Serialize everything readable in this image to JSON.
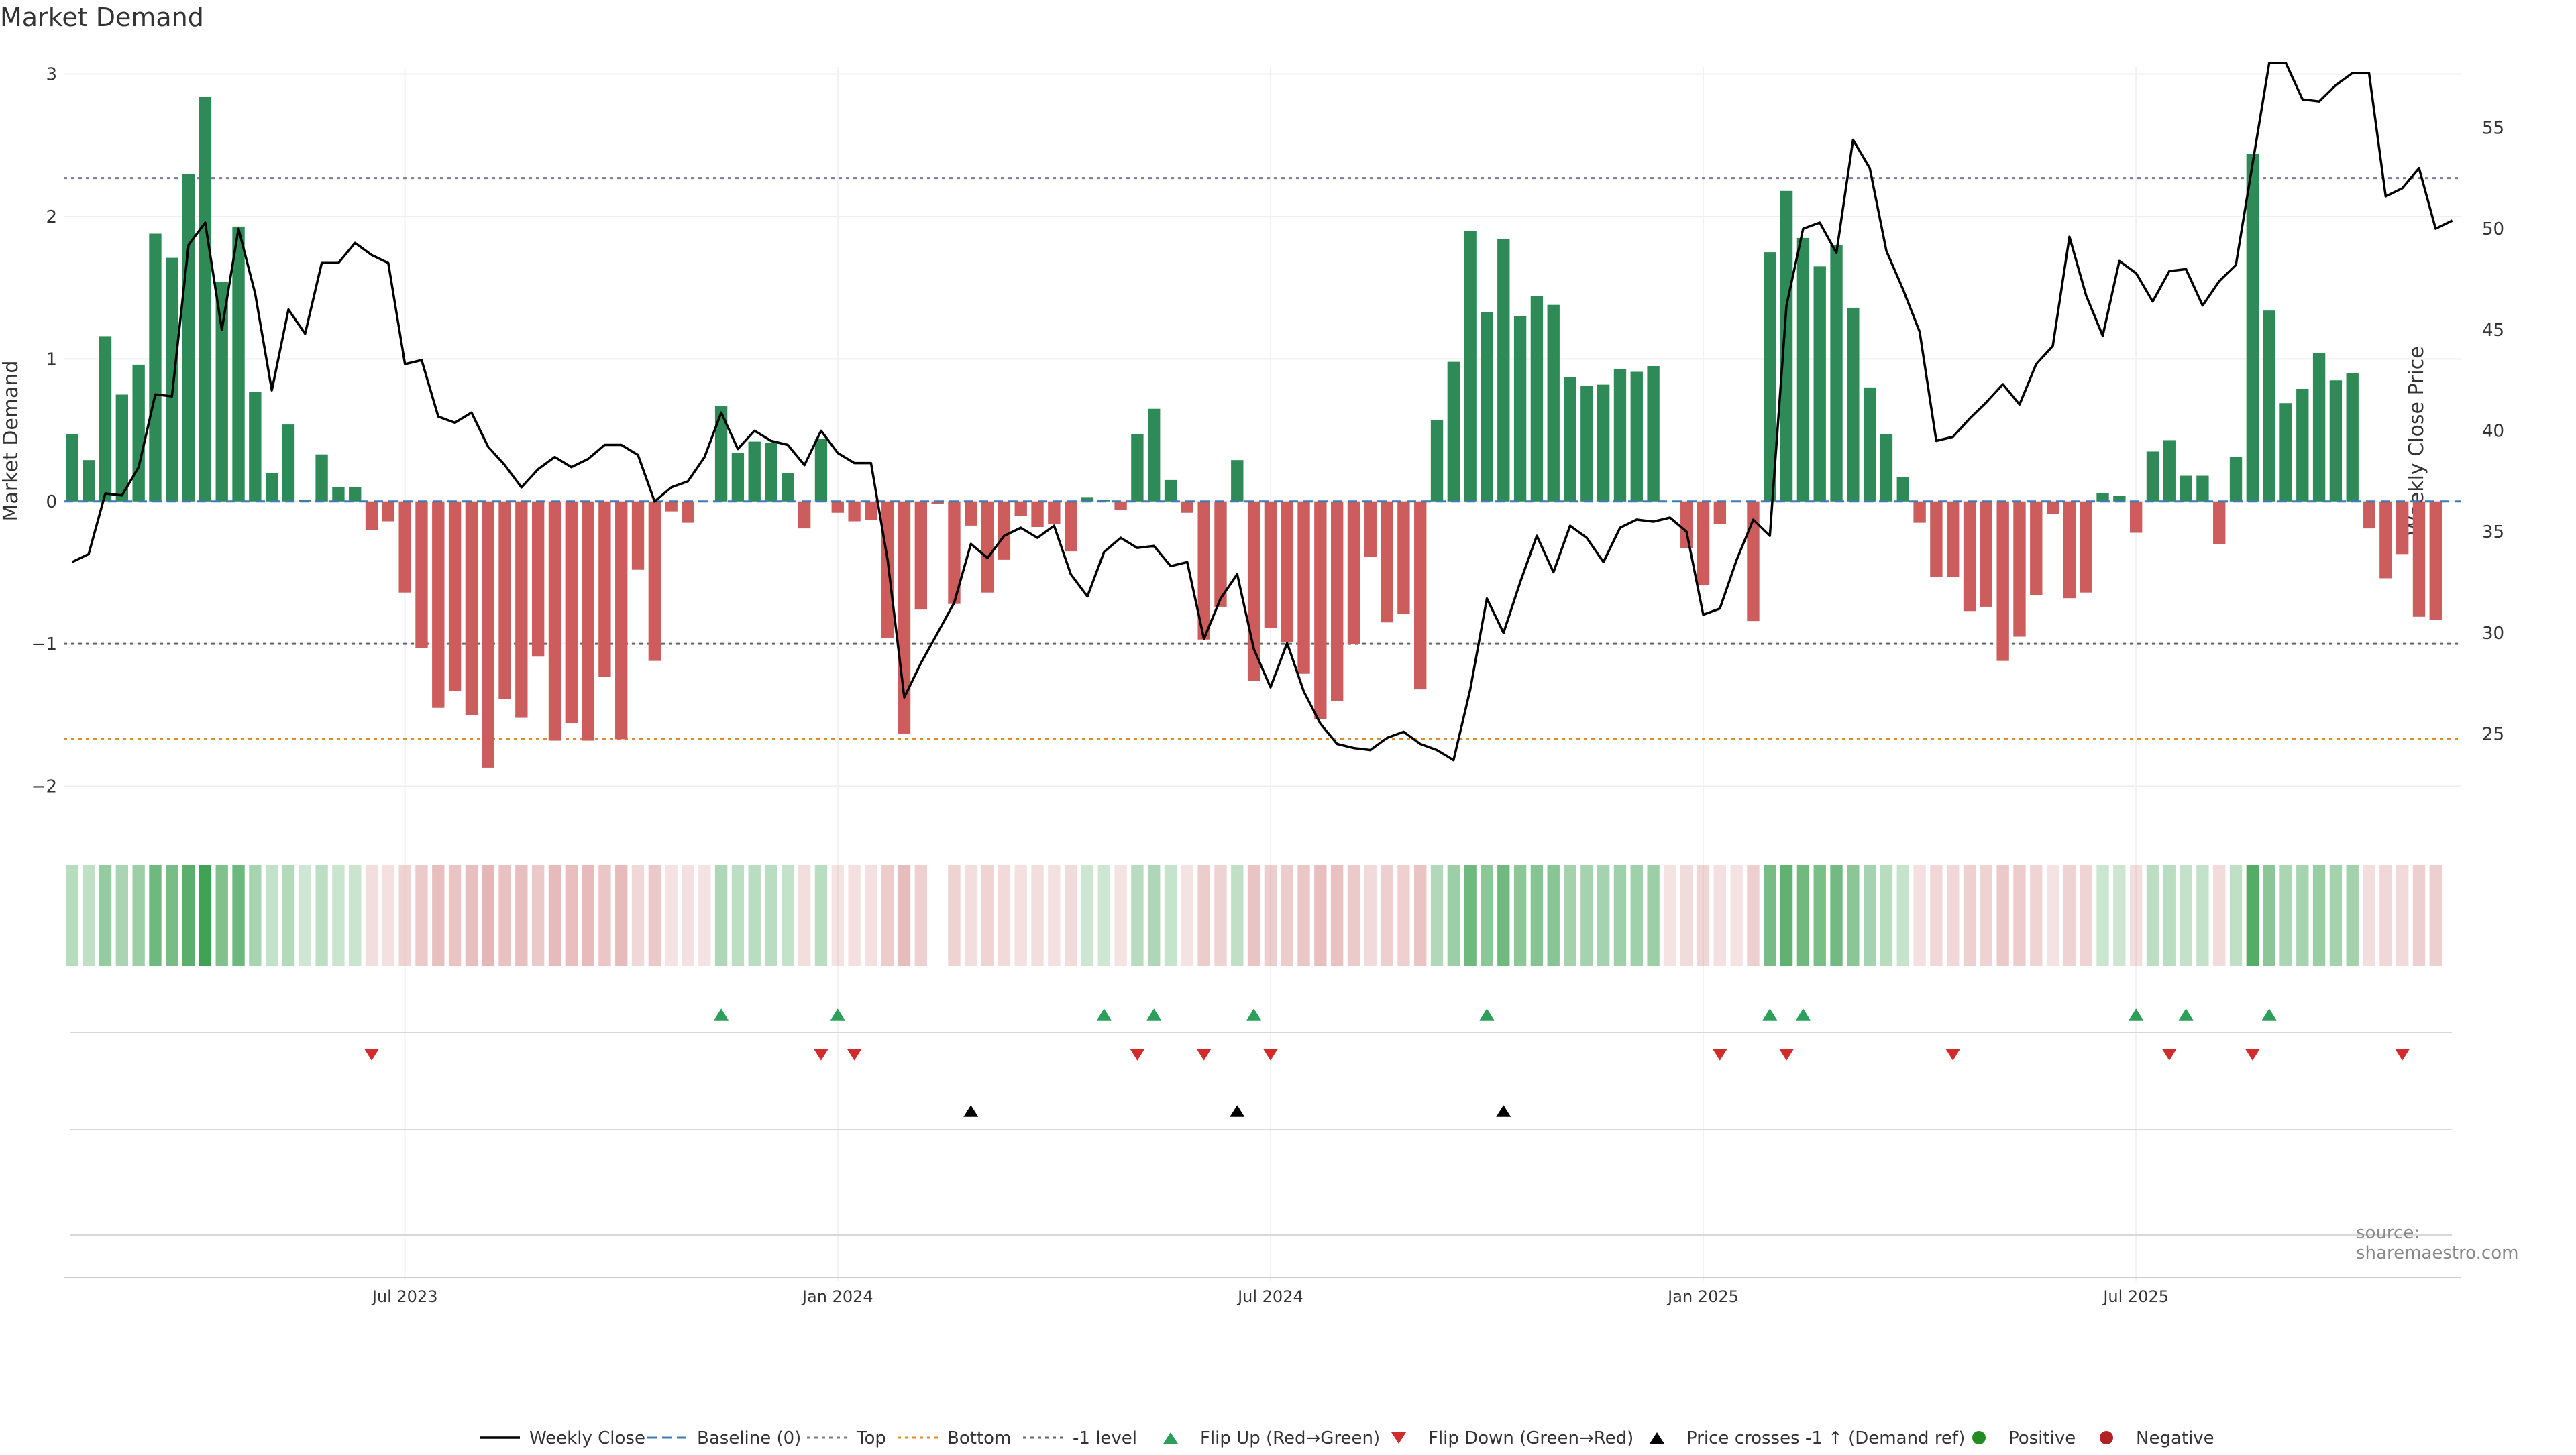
{
  "chart_data": {
    "type": "bar",
    "title": "Market Demand",
    "ylabel": "Market Demand",
    "y2label": "Weekly Close Price",
    "source": "source: sharemaestro.com",
    "ylim": [
      -2.2,
      3.05
    ],
    "y2lim": [
      21,
      58
    ],
    "yticks": [
      3,
      2,
      1,
      0,
      -1,
      -2
    ],
    "ytick_labels": [
      "3",
      "2",
      "1",
      "0",
      "−1",
      "−2"
    ],
    "y2ticks": [
      25,
      30,
      35,
      40,
      45,
      50,
      55
    ],
    "levels": {
      "top": 2.27,
      "bottom": -1.67,
      "minus_one": -1.0,
      "baseline": 0
    },
    "x_ticks": [
      {
        "label": "Jul 2023",
        "index": 20
      },
      {
        "label": "Jan 2024",
        "index": 46
      },
      {
        "label": "Jul 2024",
        "index": 72
      },
      {
        "label": "Jan 2025",
        "index": 98
      },
      {
        "label": "Jul 2025",
        "index": 124
      }
    ],
    "weeks": 144,
    "demand": [
      0.47,
      0.29,
      1.16,
      0.75,
      0.96,
      1.88,
      1.71,
      2.3,
      2.84,
      1.54,
      1.93,
      0.77,
      0.2,
      0.54,
      0.01,
      0.33,
      0.1,
      0.1,
      -0.2,
      -0.14,
      -0.64,
      -1.03,
      -1.45,
      -1.33,
      -1.5,
      -1.87,
      -1.39,
      -1.52,
      -1.09,
      -1.68,
      -1.56,
      -1.68,
      -1.23,
      -1.67,
      -0.48,
      -1.12,
      -0.07,
      -0.15,
      0.0,
      0.67,
      0.34,
      0.42,
      0.41,
      0.2,
      -0.19,
      0.44,
      -0.08,
      -0.14,
      -0.13,
      -0.96,
      -1.63,
      -0.76,
      -0.02,
      -0.72,
      -0.17,
      -0.64,
      -0.41,
      -0.1,
      -0.18,
      -0.16,
      -0.35,
      0.03,
      0.01,
      -0.06,
      0.47,
      0.65,
      0.15,
      -0.08,
      -0.97,
      -0.74,
      0.29,
      -1.26,
      -0.89,
      -0.99,
      -1.21,
      -1.53,
      -1.4,
      -1.0,
      -0.39,
      -0.85,
      -0.79,
      -1.32,
      0.57,
      0.98,
      1.9,
      1.33,
      1.84,
      1.3,
      1.44,
      1.38,
      0.87,
      0.81,
      0.82,
      0.93,
      0.91,
      0.95,
      0.0,
      -0.33,
      -0.59,
      -0.16,
      0.0,
      -0.84,
      1.75,
      2.18,
      1.85,
      1.65,
      1.8,
      1.36,
      0.8,
      0.47,
      0.17,
      -0.15,
      -0.53,
      -0.53,
      -0.77,
      -0.74,
      -1.12,
      -0.95,
      -0.66,
      -0.09,
      -0.68,
      -0.64,
      0.06,
      0.04,
      -0.22,
      0.35,
      0.43,
      0.18,
      0.18,
      -0.3,
      0.31,
      2.44,
      1.34,
      0.69,
      0.79,
      1.04,
      0.85,
      0.9,
      -0.19,
      -0.54,
      -0.37,
      -0.81,
      -0.83
    ],
    "price": [
      33.5,
      33.9,
      36.9,
      36.8,
      38.2,
      41.8,
      41.7,
      49.2,
      50.3,
      45.0,
      50.0,
      46.8,
      42.0,
      46.0,
      44.8,
      48.3,
      48.3,
      49.3,
      48.7,
      48.3,
      43.3,
      43.5,
      40.7,
      40.4,
      40.9,
      39.2,
      38.3,
      37.2,
      38.1,
      38.7,
      38.2,
      38.6,
      39.3,
      39.3,
      38.8,
      36.5,
      37.2,
      37.5,
      38.7,
      40.9,
      39.1,
      40.0,
      39.5,
      39.3,
      38.3,
      40.0,
      38.9,
      38.4,
      38.4,
      33.6,
      26.8,
      28.5,
      30.0,
      31.5,
      34.4,
      33.7,
      34.8,
      35.2,
      34.7,
      35.3,
      32.9,
      31.8,
      34.0,
      34.7,
      34.2,
      34.3,
      33.3,
      33.5,
      29.7,
      31.7,
      32.9,
      29.2,
      27.3,
      29.5,
      27.1,
      25.5,
      24.5,
      24.3,
      24.2,
      24.8,
      25.1,
      24.5,
      24.2,
      23.7,
      27.2,
      31.7,
      30.0,
      32.5,
      34.8,
      33.0,
      35.3,
      34.7,
      33.5,
      35.2,
      35.6,
      35.5,
      35.7,
      35.0,
      30.9,
      31.2,
      33.6,
      35.6,
      34.8,
      46.2,
      50.0,
      50.3,
      48.8,
      54.4,
      53.0,
      48.9,
      47.0,
      44.9,
      39.5,
      39.7,
      40.6,
      41.4,
      42.3,
      41.3,
      43.3,
      44.2,
      49.6,
      46.7,
      44.7,
      48.4,
      47.8,
      46.4,
      47.9,
      48.0,
      46.2,
      47.4,
      48.2,
      53.2,
      58.2,
      58.2,
      56.4,
      56.3,
      57.1,
      57.7,
      57.7,
      51.6,
      52.0,
      53.0,
      50.0,
      50.4
    ],
    "flip_up_idx": [
      39,
      46,
      62,
      65,
      71,
      85,
      102,
      104,
      124,
      127,
      132
    ],
    "flip_down_idx": [
      18,
      45,
      47,
      64,
      68,
      72,
      99,
      103,
      113,
      126,
      131,
      140
    ],
    "cross_idx": [
      54,
      70,
      86
    ],
    "gaps": [
      52
    ],
    "legend": [
      {
        "label": "Weekly Close",
        "kind": "line",
        "color": "#000000"
      },
      {
        "label": "Baseline (0)",
        "kind": "dash",
        "color": "#3e7bb6"
      },
      {
        "label": "Top",
        "kind": "dot",
        "color": "#7a7a9c"
      },
      {
        "label": "Bottom",
        "kind": "dot",
        "color": "#e08a2e"
      },
      {
        "label": "-1 level",
        "kind": "dot",
        "color": "#666666"
      },
      {
        "label": "Flip Up (Red→Green)",
        "kind": "tri-up",
        "color": "#2ca05a"
      },
      {
        "label": "Flip Down (Green→Red)",
        "kind": "tri-down",
        "color": "#d22b2b"
      },
      {
        "label": "Price crosses -1 ↑ (Demand ref)",
        "kind": "tri-up",
        "color": "#000000"
      },
      {
        "label": "Positive",
        "kind": "dot-marker",
        "color": "#228b22"
      },
      {
        "label": "Negative",
        "kind": "dot-marker",
        "color": "#b22222"
      }
    ],
    "colors": {
      "positive_bar": "#2e8b57",
      "negative_bar": "#cd5c5c",
      "grid": "#eeeeee",
      "price_line": "#000000"
    }
  }
}
